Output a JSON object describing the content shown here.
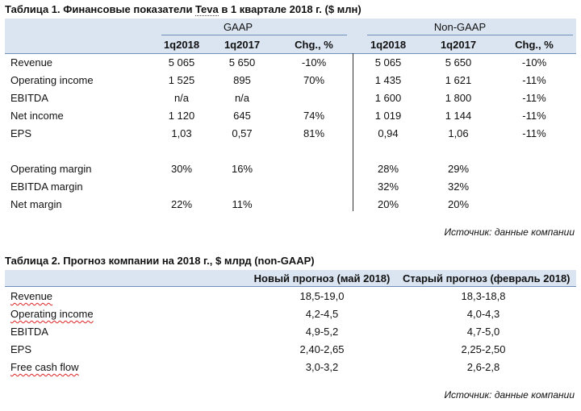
{
  "table1": {
    "title_prefix": "Таблица 1. Финансовые показатели ",
    "title_company": "Teva",
    "title_suffix": " в 1 квартале 2018 г. ($ млн)",
    "group_gaap": "GAAP",
    "group_nongaap": "Non-GAAP",
    "col_headers": [
      "1q2018",
      "1q2017",
      "Chg., %",
      "1q2018",
      "1q2017",
      "Chg., %"
    ],
    "rows": [
      {
        "label": "Revenue",
        "cells": [
          "5 065",
          "5 650",
          "-10%",
          "5 065",
          "5 650",
          "-10%"
        ]
      },
      {
        "label": "Operating income",
        "cells": [
          "1 525",
          "895",
          "70%",
          "1 435",
          "1 621",
          "-11%"
        ]
      },
      {
        "label": "EBITDA",
        "cells": [
          "n/a",
          "n/a",
          "",
          "1 600",
          "1 800",
          "-11%"
        ]
      },
      {
        "label": "Net income",
        "cells": [
          "1 120",
          "645",
          "74%",
          "1 019",
          "1 144",
          "-11%"
        ]
      },
      {
        "label": "EPS",
        "cells": [
          "1,03",
          "0,57",
          "81%",
          "0,94",
          "1,06",
          "-11%"
        ]
      },
      {
        "label": "",
        "cells": [
          "",
          "",
          "",
          "",
          "",
          ""
        ]
      },
      {
        "label": "Operating margin",
        "cells": [
          "30%",
          "16%",
          "",
          "28%",
          "29%",
          ""
        ]
      },
      {
        "label": "EBITDA margin",
        "cells": [
          "",
          "",
          "",
          "32%",
          "32%",
          ""
        ]
      },
      {
        "label": "Net margin",
        "cells": [
          "22%",
          "11%",
          "",
          "20%",
          "20%",
          ""
        ]
      }
    ],
    "source": "Источник: данные компании"
  },
  "table2": {
    "title": "Таблица 2. Прогноз компании на 2018 г., $ млрд (non-GAAP)",
    "col_headers": [
      "Новый прогноз (май 2018)",
      "Старый прогноз (февраль 2018)"
    ],
    "rows": [
      {
        "label": "Revenue",
        "cells": [
          "18,5-19,0",
          "18,3-18,8"
        ]
      },
      {
        "label": "Operating income",
        "cells": [
          "4,2-4,5",
          "4,0-4,3"
        ]
      },
      {
        "label": "EBITDA",
        "cells": [
          "4,9-5,2",
          "4,7-5,0"
        ]
      },
      {
        "label": "EPS",
        "cells": [
          "2,40-2,65",
          "2,25-2,50"
        ]
      },
      {
        "label": "Free cash flow",
        "cells": [
          "3,0-3,2",
          "2,6-2,8"
        ]
      }
    ],
    "source": "Источник: данные компании"
  }
}
